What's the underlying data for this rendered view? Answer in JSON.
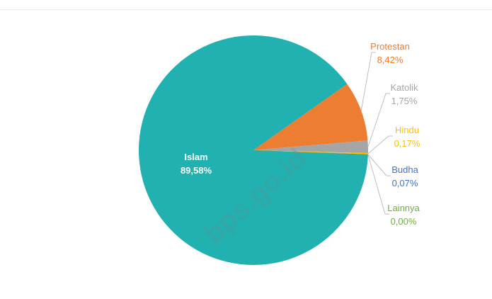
{
  "watermark": "bps.go.id",
  "chart_data": {
    "type": "pie",
    "title": "",
    "legend": "none",
    "slices": [
      {
        "label": "Islam",
        "value": 89.58,
        "value_label": "89,58%",
        "color": "#21b1b1",
        "label_color": "#ffffff"
      },
      {
        "label": "Protestan",
        "value": 8.42,
        "value_label": "8,42%",
        "color": "#ed7d31",
        "label_color": "#ed7d31"
      },
      {
        "label": "Katolik",
        "value": 1.75,
        "value_label": "1,75%",
        "color": "#a5a5a5",
        "label_color": "#a5a5a5"
      },
      {
        "label": "Hindu",
        "value": 0.17,
        "value_label": "0,17%",
        "color": "#ffc000",
        "label_color": "#ffc000"
      },
      {
        "label": "Budha",
        "value": 0.07,
        "value_label": "0,07%",
        "color": "#4472c4",
        "label_color": "#4472c4"
      },
      {
        "label": "Lainnya",
        "value": 0.0,
        "value_label": "0,00%",
        "color": "#70ad47",
        "label_color": "#70ad47"
      }
    ]
  }
}
